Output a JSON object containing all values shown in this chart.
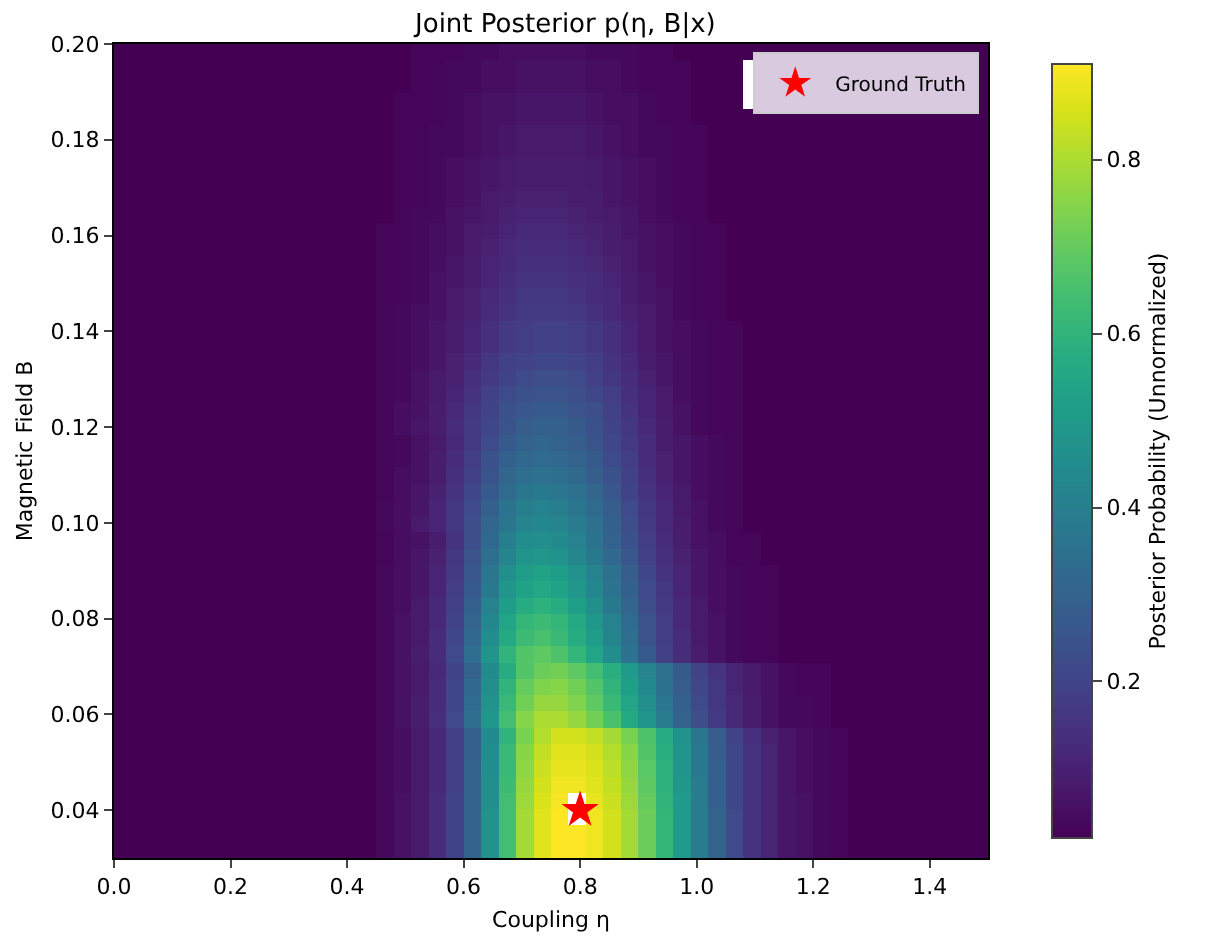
{
  "chart_data": {
    "type": "heatmap",
    "title": "Joint Posterior p(η, B|x)",
    "xlabel": "Coupling η",
    "ylabel": "Magnetic Field B",
    "clabel": "Posterior Probability (Unnormalized)",
    "x": [
      0.015,
      0.045,
      0.075,
      0.105,
      0.135,
      0.165,
      0.195,
      0.225,
      0.255,
      0.285,
      0.315,
      0.345,
      0.375,
      0.405,
      0.435,
      0.465,
      0.495,
      0.525,
      0.555,
      0.585,
      0.615,
      0.645,
      0.675,
      0.705,
      0.735,
      0.765,
      0.795,
      0.825,
      0.855,
      0.885,
      0.915,
      0.945,
      0.975,
      1.005,
      1.035,
      1.065,
      1.095,
      1.125,
      1.155,
      1.185,
      1.215,
      1.245,
      1.275,
      1.305,
      1.335,
      1.365,
      1.395,
      1.425,
      1.455,
      1.485
    ],
    "y": [
      0.1983,
      0.1949,
      0.1915,
      0.1881,
      0.1847,
      0.1813,
      0.1779,
      0.1745,
      0.1711,
      0.1677,
      0.1643,
      0.1609,
      0.1575,
      0.1541,
      0.1507,
      0.1473,
      0.1439,
      0.1405,
      0.1371,
      0.1337,
      0.1303,
      0.1269,
      0.1235,
      0.1201,
      0.1167,
      0.1133,
      0.1099,
      0.1065,
      0.1031,
      0.0997,
      0.0963,
      0.0929,
      0.0895,
      0.0861,
      0.0827,
      0.0793,
      0.0759,
      0.0725,
      0.0691,
      0.0657,
      0.0623,
      0.0589,
      0.0555,
      0.0521,
      0.0487,
      0.0453,
      0.0419,
      0.0385,
      0.0351,
      0.0317
    ],
    "cells": [
      [
        0.02,
        0.02,
        0.02,
        0.02,
        0.02,
        0.02,
        0.02,
        0.02,
        0.02,
        0.02,
        0.02,
        0.02,
        0.02,
        0.02,
        0.02,
        0.02,
        0.02,
        0.03,
        0.03,
        0.03,
        0.04,
        0.04,
        0.05,
        0.05,
        0.05,
        0.05,
        0.05,
        0.04,
        0.04,
        0.04,
        0.03,
        0.03,
        0.02,
        0.02,
        0.02,
        0.02,
        0.02,
        0.02,
        0.02,
        0.02,
        0.02,
        0.02,
        0.02,
        0.02,
        0.02,
        0.02,
        0.02,
        0.02,
        0.02,
        0.02
      ],
      [
        0.02,
        0.02,
        0.02,
        0.02,
        0.02,
        0.02,
        0.02,
        0.02,
        0.02,
        0.02,
        0.02,
        0.02,
        0.02,
        0.02,
        0.02,
        0.02,
        0.02,
        0.03,
        0.03,
        0.04,
        0.04,
        0.05,
        0.05,
        0.06,
        0.06,
        0.06,
        0.06,
        0.05,
        0.05,
        0.04,
        0.03,
        0.03,
        0.03,
        0.02,
        0.02,
        0.02,
        null,
        null,
        null,
        null,
        null,
        null,
        null,
        null,
        null,
        null,
        null,
        null,
        null,
        0.02
      ],
      [
        0.02,
        0.02,
        0.02,
        0.02,
        0.02,
        0.02,
        0.02,
        0.02,
        0.02,
        0.02,
        0.02,
        0.02,
        0.02,
        0.02,
        0.02,
        0.02,
        0.02,
        0.03,
        0.03,
        0.04,
        0.04,
        0.05,
        0.05,
        0.06,
        0.06,
        0.06,
        0.06,
        0.05,
        0.05,
        0.04,
        0.03,
        0.03,
        0.03,
        0.02,
        0.02,
        0.02,
        null,
        null,
        null,
        null,
        null,
        null,
        null,
        null,
        null,
        null,
        null,
        null,
        null,
        0.02
      ],
      [
        0.02,
        0.02,
        0.02,
        0.02,
        0.02,
        0.02,
        0.02,
        0.02,
        0.02,
        0.02,
        0.02,
        0.02,
        0.02,
        0.02,
        0.02,
        0.02,
        0.03,
        0.03,
        0.03,
        0.04,
        0.05,
        0.06,
        0.06,
        0.07,
        0.07,
        0.07,
        0.07,
        0.06,
        0.05,
        0.05,
        0.04,
        0.03,
        0.03,
        0.02,
        0.02,
        0.02,
        null,
        null,
        null,
        null,
        null,
        null,
        null,
        null,
        null,
        null,
        null,
        null,
        null,
        0.02
      ],
      [
        0.02,
        0.02,
        0.02,
        0.02,
        0.02,
        0.02,
        0.02,
        0.02,
        0.02,
        0.02,
        0.02,
        0.02,
        0.02,
        0.02,
        0.02,
        0.02,
        0.03,
        0.03,
        0.03,
        0.04,
        0.05,
        0.06,
        0.06,
        0.07,
        0.07,
        0.07,
        0.07,
        0.06,
        0.05,
        0.05,
        0.04,
        0.03,
        0.03,
        0.02,
        0.02,
        0.02,
        0.02,
        0.02,
        0.02,
        0.02,
        0.02,
        0.02,
        0.02,
        0.02,
        0.02,
        0.02,
        0.02,
        0.02,
        0.02,
        0.02
      ],
      [
        0.02,
        0.02,
        0.02,
        0.02,
        0.02,
        0.02,
        0.02,
        0.02,
        0.02,
        0.02,
        0.02,
        0.02,
        0.02,
        0.02,
        0.02,
        0.02,
        0.03,
        0.03,
        0.04,
        0.04,
        0.05,
        0.06,
        0.07,
        0.08,
        0.08,
        0.08,
        0.08,
        0.07,
        0.06,
        0.05,
        0.04,
        0.04,
        0.03,
        0.03,
        0.02,
        0.02,
        0.02,
        0.02,
        0.02,
        0.02,
        0.02,
        0.02,
        0.02,
        0.02,
        0.02,
        0.02,
        0.02,
        0.02,
        0.02,
        0.02
      ],
      [
        0.02,
        0.02,
        0.02,
        0.02,
        0.02,
        0.02,
        0.02,
        0.02,
        0.02,
        0.02,
        0.02,
        0.02,
        0.02,
        0.02,
        0.02,
        0.02,
        0.03,
        0.03,
        0.04,
        0.04,
        0.05,
        0.06,
        0.07,
        0.08,
        0.08,
        0.08,
        0.08,
        0.07,
        0.06,
        0.05,
        0.04,
        0.04,
        0.03,
        0.03,
        0.02,
        0.02,
        0.02,
        0.02,
        0.02,
        0.02,
        0.02,
        0.02,
        0.02,
        0.02,
        0.02,
        0.02,
        0.02,
        0.02,
        0.02,
        0.02
      ],
      [
        0.02,
        0.02,
        0.02,
        0.02,
        0.02,
        0.02,
        0.02,
        0.02,
        0.02,
        0.02,
        0.02,
        0.02,
        0.02,
        0.02,
        0.02,
        0.02,
        0.03,
        0.03,
        0.04,
        0.05,
        0.06,
        0.07,
        0.08,
        0.09,
        0.09,
        0.09,
        0.09,
        0.08,
        0.07,
        0.06,
        0.05,
        0.04,
        0.03,
        0.03,
        0.02,
        0.02,
        0.02,
        0.02,
        0.02,
        0.02,
        0.02,
        0.02,
        0.02,
        0.02,
        0.02,
        0.02,
        0.02,
        0.02,
        0.02,
        0.02
      ],
      [
        0.02,
        0.02,
        0.02,
        0.02,
        0.02,
        0.02,
        0.02,
        0.02,
        0.02,
        0.02,
        0.02,
        0.02,
        0.02,
        0.02,
        0.02,
        0.02,
        0.03,
        0.03,
        0.04,
        0.05,
        0.06,
        0.07,
        0.08,
        0.09,
        0.09,
        0.09,
        0.09,
        0.08,
        0.07,
        0.06,
        0.05,
        0.04,
        0.03,
        0.03,
        0.02,
        0.02,
        0.02,
        0.02,
        0.02,
        0.02,
        0.02,
        0.02,
        0.02,
        0.02,
        0.02,
        0.02,
        0.02,
        0.02,
        0.02,
        0.02
      ],
      [
        0.02,
        0.02,
        0.02,
        0.02,
        0.02,
        0.02,
        0.02,
        0.02,
        0.02,
        0.02,
        0.02,
        0.02,
        0.02,
        0.02,
        0.02,
        0.02,
        0.03,
        0.03,
        0.04,
        0.05,
        0.06,
        0.08,
        0.09,
        0.1,
        0.1,
        0.1,
        0.09,
        0.09,
        0.07,
        0.06,
        0.05,
        0.04,
        0.03,
        0.03,
        0.02,
        0.02,
        0.02,
        0.02,
        0.02,
        0.02,
        0.02,
        0.02,
        0.02,
        0.02,
        0.02,
        0.02,
        0.02,
        0.02,
        0.02,
        0.02
      ],
      [
        0.02,
        0.02,
        0.02,
        0.02,
        0.02,
        0.02,
        0.02,
        0.02,
        0.02,
        0.02,
        0.02,
        0.02,
        0.02,
        0.02,
        0.02,
        0.02,
        0.03,
        0.04,
        0.04,
        0.06,
        0.07,
        0.08,
        0.1,
        0.11,
        0.11,
        0.11,
        0.1,
        0.09,
        0.08,
        0.07,
        0.05,
        0.04,
        0.03,
        0.03,
        0.02,
        0.02,
        0.02,
        0.02,
        0.02,
        0.02,
        0.02,
        0.02,
        0.02,
        0.02,
        0.02,
        0.02,
        0.02,
        0.02,
        0.02,
        0.02
      ],
      [
        0.02,
        0.02,
        0.02,
        0.02,
        0.02,
        0.02,
        0.02,
        0.02,
        0.02,
        0.02,
        0.02,
        0.02,
        0.02,
        0.02,
        0.02,
        0.03,
        0.03,
        0.04,
        0.05,
        0.06,
        0.08,
        0.09,
        0.11,
        0.12,
        0.12,
        0.12,
        0.11,
        0.1,
        0.09,
        0.07,
        0.06,
        0.05,
        0.04,
        0.03,
        0.03,
        0.02,
        0.02,
        0.02,
        0.02,
        0.02,
        0.02,
        0.02,
        0.02,
        0.02,
        0.02,
        0.02,
        0.02,
        0.02,
        0.02,
        0.02
      ],
      [
        0.02,
        0.02,
        0.02,
        0.02,
        0.02,
        0.02,
        0.02,
        0.02,
        0.02,
        0.02,
        0.02,
        0.02,
        0.02,
        0.02,
        0.02,
        0.03,
        0.03,
        0.04,
        0.05,
        0.06,
        0.08,
        0.1,
        0.12,
        0.13,
        0.13,
        0.13,
        0.12,
        0.11,
        0.09,
        0.08,
        0.06,
        0.05,
        0.04,
        0.03,
        0.03,
        0.02,
        0.02,
        0.02,
        0.02,
        0.02,
        0.02,
        0.02,
        0.02,
        0.02,
        0.02,
        0.02,
        0.02,
        0.02,
        0.02,
        0.02
      ],
      [
        0.02,
        0.02,
        0.02,
        0.02,
        0.02,
        0.02,
        0.02,
        0.02,
        0.02,
        0.02,
        0.02,
        0.02,
        0.02,
        0.02,
        0.02,
        0.03,
        0.03,
        0.04,
        0.05,
        0.07,
        0.09,
        0.11,
        0.12,
        0.14,
        0.14,
        0.14,
        0.13,
        0.12,
        0.1,
        0.08,
        0.06,
        0.05,
        0.04,
        0.03,
        0.03,
        0.02,
        0.02,
        0.02,
        0.02,
        0.02,
        0.02,
        0.02,
        0.02,
        0.02,
        0.02,
        0.02,
        0.02,
        0.02,
        0.02,
        0.02
      ],
      [
        0.02,
        0.02,
        0.02,
        0.02,
        0.02,
        0.02,
        0.02,
        0.02,
        0.02,
        0.02,
        0.02,
        0.02,
        0.02,
        0.02,
        0.02,
        0.03,
        0.03,
        0.04,
        0.06,
        0.07,
        0.09,
        0.11,
        0.13,
        0.15,
        0.15,
        0.15,
        0.14,
        0.13,
        0.11,
        0.09,
        0.07,
        0.05,
        0.04,
        0.03,
        0.03,
        0.02,
        0.02,
        0.02,
        0.02,
        0.02,
        0.02,
        0.02,
        0.02,
        0.02,
        0.02,
        0.02,
        0.02,
        0.02,
        0.02,
        0.02
      ],
      [
        0.02,
        0.02,
        0.02,
        0.02,
        0.02,
        0.02,
        0.02,
        0.02,
        0.02,
        0.02,
        0.02,
        0.02,
        0.02,
        0.02,
        0.02,
        0.03,
        0.03,
        0.04,
        0.06,
        0.08,
        0.1,
        0.12,
        0.14,
        0.16,
        0.16,
        0.16,
        0.15,
        0.13,
        0.12,
        0.09,
        0.07,
        0.06,
        0.04,
        0.03,
        0.03,
        0.02,
        0.02,
        0.02,
        0.02,
        0.02,
        0.02,
        0.02,
        0.02,
        0.02,
        0.02,
        0.02,
        0.02,
        0.02,
        0.02,
        0.02
      ],
      [
        0.02,
        0.02,
        0.02,
        0.02,
        0.02,
        0.02,
        0.02,
        0.02,
        0.02,
        0.02,
        0.02,
        0.02,
        0.02,
        0.02,
        0.02,
        0.03,
        0.04,
        0.05,
        0.06,
        0.08,
        0.1,
        0.13,
        0.15,
        0.17,
        0.17,
        0.17,
        0.16,
        0.14,
        0.12,
        0.1,
        0.08,
        0.06,
        0.04,
        0.03,
        0.03,
        0.02,
        0.02,
        0.02,
        0.02,
        0.02,
        0.02,
        0.02,
        0.02,
        0.02,
        0.02,
        0.02,
        0.02,
        0.02,
        0.02,
        0.02
      ],
      [
        0.02,
        0.02,
        0.02,
        0.02,
        0.02,
        0.02,
        0.02,
        0.02,
        0.02,
        0.02,
        0.02,
        0.02,
        0.02,
        0.02,
        0.02,
        0.03,
        0.04,
        0.05,
        0.07,
        0.09,
        0.11,
        0.14,
        0.17,
        0.18,
        0.19,
        0.19,
        0.18,
        0.16,
        0.14,
        0.11,
        0.08,
        0.06,
        0.05,
        0.04,
        0.03,
        0.03,
        0.02,
        0.02,
        0.02,
        0.02,
        0.02,
        0.02,
        0.02,
        0.02,
        0.02,
        0.02,
        0.02,
        0.02,
        0.02,
        0.02
      ],
      [
        0.02,
        0.02,
        0.02,
        0.02,
        0.02,
        0.02,
        0.02,
        0.02,
        0.02,
        0.02,
        0.02,
        0.02,
        0.02,
        0.02,
        0.02,
        0.03,
        0.04,
        0.05,
        0.07,
        0.09,
        0.11,
        0.14,
        0.17,
        0.18,
        0.19,
        0.19,
        0.18,
        0.16,
        0.14,
        0.11,
        0.08,
        0.06,
        0.05,
        0.04,
        0.03,
        0.03,
        0.02,
        0.02,
        0.02,
        0.02,
        0.02,
        0.02,
        0.02,
        0.02,
        0.02,
        0.02,
        0.02,
        0.02,
        0.02,
        0.02
      ],
      [
        0.02,
        0.02,
        0.02,
        0.02,
        0.02,
        0.02,
        0.02,
        0.02,
        0.02,
        0.02,
        0.02,
        0.02,
        0.02,
        0.02,
        0.02,
        0.03,
        0.04,
        0.05,
        0.07,
        0.1,
        0.12,
        0.16,
        0.19,
        0.2,
        0.21,
        0.21,
        0.2,
        0.18,
        0.15,
        0.12,
        0.09,
        0.07,
        0.05,
        0.04,
        0.03,
        0.03,
        0.02,
        0.02,
        0.02,
        0.02,
        0.02,
        0.02,
        0.02,
        0.02,
        0.02,
        0.02,
        0.02,
        0.02,
        0.02,
        0.02
      ],
      [
        0.02,
        0.02,
        0.02,
        0.02,
        0.02,
        0.02,
        0.02,
        0.02,
        0.02,
        0.02,
        0.02,
        0.02,
        0.02,
        0.02,
        0.02,
        0.03,
        0.04,
        0.06,
        0.08,
        0.1,
        0.14,
        0.17,
        0.2,
        0.22,
        0.23,
        0.23,
        0.22,
        0.19,
        0.16,
        0.13,
        0.1,
        0.07,
        0.05,
        0.04,
        0.03,
        0.03,
        0.02,
        0.02,
        0.02,
        0.02,
        0.02,
        0.02,
        0.02,
        0.02,
        0.02,
        0.02,
        0.02,
        0.02,
        0.02,
        0.02
      ],
      [
        0.02,
        0.02,
        0.02,
        0.02,
        0.02,
        0.02,
        0.02,
        0.02,
        0.02,
        0.02,
        0.02,
        0.02,
        0.02,
        0.02,
        0.02,
        0.03,
        0.04,
        0.06,
        0.08,
        0.11,
        0.15,
        0.19,
        0.22,
        0.24,
        0.25,
        0.25,
        0.23,
        0.21,
        0.18,
        0.14,
        0.11,
        0.08,
        0.05,
        0.04,
        0.03,
        0.03,
        0.02,
        0.02,
        0.02,
        0.02,
        0.02,
        0.02,
        0.02,
        0.02,
        0.02,
        0.02,
        0.02,
        0.02,
        0.02,
        0.02
      ],
      [
        0.02,
        0.02,
        0.02,
        0.02,
        0.02,
        0.02,
        0.02,
        0.02,
        0.02,
        0.02,
        0.02,
        0.02,
        0.02,
        0.02,
        0.02,
        0.03,
        0.05,
        0.06,
        0.09,
        0.12,
        0.16,
        0.2,
        0.24,
        0.26,
        0.27,
        0.27,
        0.25,
        0.23,
        0.19,
        0.15,
        0.11,
        0.08,
        0.06,
        0.04,
        0.03,
        0.03,
        0.02,
        0.02,
        0.02,
        0.02,
        0.02,
        0.02,
        0.02,
        0.02,
        0.02,
        0.02,
        0.02,
        0.02,
        0.02,
        0.02
      ],
      [
        0.02,
        0.02,
        0.02,
        0.02,
        0.02,
        0.02,
        0.02,
        0.02,
        0.02,
        0.02,
        0.02,
        0.02,
        0.02,
        0.02,
        0.02,
        0.03,
        0.05,
        0.07,
        0.09,
        0.13,
        0.17,
        0.21,
        0.25,
        0.28,
        0.29,
        0.29,
        0.27,
        0.24,
        0.2,
        0.16,
        0.12,
        0.09,
        0.06,
        0.04,
        0.03,
        0.03,
        0.02,
        0.02,
        0.02,
        0.02,
        0.02,
        0.02,
        0.02,
        0.02,
        0.02,
        0.02,
        0.02,
        0.02,
        0.02,
        0.02
      ],
      [
        0.02,
        0.02,
        0.02,
        0.02,
        0.02,
        0.02,
        0.02,
        0.02,
        0.02,
        0.02,
        0.02,
        0.02,
        0.02,
        0.02,
        0.02,
        0.03,
        0.04,
        0.06,
        0.08,
        0.12,
        0.17,
        0.22,
        0.27,
        0.3,
        0.31,
        0.3,
        0.28,
        0.25,
        0.21,
        0.17,
        0.13,
        0.09,
        0.07,
        0.05,
        0.04,
        0.03,
        0.02,
        0.02,
        0.02,
        0.02,
        0.02,
        0.02,
        0.02,
        0.02,
        0.02,
        0.02,
        0.02,
        0.02,
        0.02,
        0.02
      ],
      [
        0.02,
        0.02,
        0.02,
        0.02,
        0.02,
        0.02,
        0.02,
        0.02,
        0.02,
        0.02,
        0.02,
        0.02,
        0.02,
        0.02,
        0.02,
        0.03,
        0.04,
        0.06,
        0.09,
        0.13,
        0.18,
        0.24,
        0.29,
        0.32,
        0.33,
        0.32,
        0.3,
        0.27,
        0.22,
        0.18,
        0.13,
        0.1,
        0.07,
        0.05,
        0.04,
        0.03,
        0.02,
        0.02,
        0.02,
        0.02,
        0.02,
        0.02,
        0.02,
        0.02,
        0.02,
        0.02,
        0.02,
        0.02,
        0.02,
        0.02
      ],
      [
        0.02,
        0.02,
        0.02,
        0.02,
        0.02,
        0.02,
        0.02,
        0.02,
        0.02,
        0.02,
        0.02,
        0.02,
        0.02,
        0.02,
        0.02,
        0.03,
        0.05,
        0.06,
        0.09,
        0.14,
        0.19,
        0.25,
        0.31,
        0.34,
        0.35,
        0.34,
        0.32,
        0.28,
        0.24,
        0.19,
        0.14,
        0.1,
        0.07,
        0.05,
        0.04,
        0.03,
        0.02,
        0.02,
        0.02,
        0.02,
        0.02,
        0.02,
        0.02,
        0.02,
        0.02,
        0.02,
        0.02,
        0.02,
        0.02,
        0.02
      ],
      [
        0.02,
        0.02,
        0.02,
        0.02,
        0.02,
        0.02,
        0.02,
        0.02,
        0.02,
        0.02,
        0.02,
        0.02,
        0.02,
        0.02,
        0.02,
        0.03,
        0.05,
        0.07,
        0.1,
        0.15,
        0.21,
        0.27,
        0.33,
        0.37,
        0.38,
        0.37,
        0.35,
        0.31,
        0.26,
        0.2,
        0.15,
        0.11,
        0.08,
        0.05,
        0.04,
        0.03,
        0.02,
        0.02,
        0.02,
        0.02,
        0.02,
        0.02,
        0.02,
        0.02,
        0.02,
        0.02,
        0.02,
        0.02,
        0.02,
        0.02
      ],
      [
        0.02,
        0.02,
        0.02,
        0.02,
        0.02,
        0.02,
        0.02,
        0.02,
        0.02,
        0.02,
        0.02,
        0.02,
        0.02,
        0.02,
        0.02,
        0.04,
        0.05,
        0.07,
        0.11,
        0.16,
        0.22,
        0.29,
        0.36,
        0.4,
        0.41,
        0.4,
        0.37,
        0.33,
        0.28,
        0.22,
        0.16,
        0.12,
        0.08,
        0.06,
        0.04,
        0.03,
        0.02,
        0.02,
        0.02,
        0.02,
        0.02,
        0.02,
        0.02,
        0.02,
        0.02,
        0.02,
        0.02,
        0.02,
        0.02,
        0.02
      ],
      [
        0.02,
        0.02,
        0.02,
        0.02,
        0.02,
        0.02,
        0.02,
        0.02,
        0.02,
        0.02,
        0.02,
        0.02,
        0.02,
        0.02,
        0.02,
        0.04,
        0.05,
        0.08,
        0.11,
        0.16,
        0.23,
        0.31,
        0.37,
        0.42,
        0.43,
        0.42,
        0.39,
        0.35,
        0.29,
        0.23,
        0.17,
        0.12,
        0.09,
        0.06,
        0.04,
        0.03,
        0.02,
        0.02,
        0.02,
        0.02,
        0.02,
        0.02,
        0.02,
        0.02,
        0.02,
        0.02,
        0.02,
        0.02,
        0.02,
        0.02
      ],
      [
        0.02,
        0.02,
        0.02,
        0.02,
        0.02,
        0.02,
        0.02,
        0.02,
        0.02,
        0.02,
        0.02,
        0.02,
        0.02,
        0.02,
        0.02,
        0.03,
        0.05,
        0.06,
        0.09,
        0.15,
        0.23,
        0.32,
        0.4,
        0.45,
        0.46,
        0.44,
        0.41,
        0.36,
        0.3,
        0.24,
        0.18,
        0.13,
        0.09,
        0.06,
        0.05,
        0.03,
        0.03,
        0.02,
        0.02,
        0.02,
        0.02,
        0.02,
        0.02,
        0.02,
        0.02,
        0.02,
        0.02,
        0.02,
        0.02,
        0.02
      ],
      [
        0.02,
        0.02,
        0.02,
        0.02,
        0.02,
        0.02,
        0.02,
        0.02,
        0.02,
        0.02,
        0.02,
        0.02,
        0.02,
        0.02,
        0.02,
        0.03,
        0.05,
        0.07,
        0.1,
        0.16,
        0.25,
        0.34,
        0.42,
        0.48,
        0.49,
        0.47,
        0.43,
        0.38,
        0.32,
        0.26,
        0.19,
        0.14,
        0.1,
        0.07,
        0.05,
        0.03,
        0.03,
        0.02,
        0.02,
        0.02,
        0.02,
        0.02,
        0.02,
        0.02,
        0.02,
        0.02,
        0.02,
        0.02,
        0.02,
        0.02
      ],
      [
        0.02,
        0.02,
        0.02,
        0.02,
        0.02,
        0.02,
        0.02,
        0.02,
        0.02,
        0.02,
        0.02,
        0.02,
        0.02,
        0.02,
        0.02,
        0.04,
        0.05,
        0.07,
        0.11,
        0.17,
        0.26,
        0.37,
        0.46,
        0.51,
        0.53,
        0.51,
        0.47,
        0.41,
        0.35,
        0.28,
        0.21,
        0.15,
        0.11,
        0.07,
        0.05,
        0.04,
        0.03,
        0.03,
        0.02,
        0.02,
        0.02,
        0.02,
        0.02,
        0.02,
        0.02,
        0.02,
        0.02,
        0.02,
        0.02,
        0.02
      ],
      [
        0.02,
        0.02,
        0.02,
        0.02,
        0.02,
        0.02,
        0.02,
        0.02,
        0.02,
        0.02,
        0.02,
        0.02,
        0.02,
        0.02,
        0.02,
        0.04,
        0.05,
        0.07,
        0.11,
        0.18,
        0.27,
        0.38,
        0.48,
        0.53,
        0.55,
        0.53,
        0.49,
        0.43,
        0.36,
        0.29,
        0.22,
        0.16,
        0.11,
        0.07,
        0.05,
        0.04,
        0.03,
        0.03,
        0.02,
        0.02,
        0.02,
        0.02,
        0.02,
        0.02,
        0.02,
        0.02,
        0.02,
        0.02,
        0.02,
        0.02
      ],
      [
        0.02,
        0.02,
        0.02,
        0.02,
        0.02,
        0.02,
        0.02,
        0.02,
        0.02,
        0.02,
        0.02,
        0.02,
        0.02,
        0.02,
        0.02,
        0.04,
        0.05,
        0.08,
        0.12,
        0.19,
        0.29,
        0.41,
        0.51,
        0.57,
        0.59,
        0.57,
        0.52,
        0.46,
        0.38,
        0.31,
        0.23,
        0.17,
        0.12,
        0.08,
        0.05,
        0.04,
        0.03,
        0.03,
        0.02,
        0.02,
        0.02,
        0.02,
        0.02,
        0.02,
        0.02,
        0.02,
        0.02,
        0.02,
        0.02,
        0.02
      ],
      [
        0.02,
        0.02,
        0.02,
        0.02,
        0.02,
        0.02,
        0.02,
        0.02,
        0.02,
        0.02,
        0.02,
        0.02,
        0.02,
        0.02,
        0.02,
        0.04,
        0.06,
        0.08,
        0.12,
        0.2,
        0.31,
        0.43,
        0.54,
        0.61,
        0.63,
        0.61,
        0.56,
        0.49,
        0.41,
        0.33,
        0.25,
        0.18,
        0.12,
        0.08,
        0.06,
        0.04,
        0.03,
        0.03,
        0.02,
        0.02,
        0.02,
        0.02,
        0.02,
        0.02,
        0.02,
        0.02,
        0.02,
        0.02,
        0.02,
        0.02
      ],
      [
        0.02,
        0.02,
        0.02,
        0.02,
        0.02,
        0.02,
        0.02,
        0.02,
        0.02,
        0.02,
        0.02,
        0.02,
        0.02,
        0.02,
        0.02,
        0.04,
        0.06,
        0.08,
        0.13,
        0.21,
        0.32,
        0.45,
        0.56,
        0.63,
        0.65,
        0.62,
        0.57,
        0.51,
        0.42,
        0.34,
        0.25,
        0.18,
        0.13,
        0.08,
        0.06,
        0.04,
        0.03,
        0.03,
        0.02,
        0.02,
        0.02,
        0.02,
        0.02,
        0.02,
        0.02,
        0.02,
        0.02,
        0.02,
        0.02,
        0.02
      ],
      [
        0.02,
        0.02,
        0.02,
        0.02,
        0.02,
        0.02,
        0.02,
        0.02,
        0.02,
        0.02,
        0.02,
        0.02,
        0.02,
        0.02,
        0.02,
        0.04,
        0.06,
        0.09,
        0.13,
        0.22,
        0.34,
        0.48,
        0.6,
        0.67,
        0.69,
        0.66,
        0.61,
        0.54,
        0.45,
        0.36,
        0.27,
        0.19,
        0.13,
        0.09,
        0.06,
        0.04,
        0.03,
        0.03,
        0.02,
        0.02,
        0.02,
        0.02,
        0.02,
        0.02,
        0.02,
        0.02,
        0.02,
        0.02,
        0.02,
        0.02
      ],
      [
        0.02,
        0.02,
        0.02,
        0.02,
        0.02,
        0.02,
        0.02,
        0.02,
        0.02,
        0.02,
        0.02,
        0.02,
        0.02,
        0.02,
        0.02,
        0.04,
        0.06,
        0.08,
        0.12,
        0.2,
        0.3,
        0.44,
        0.57,
        0.67,
        0.71,
        0.72,
        0.69,
        0.64,
        0.58,
        0.5,
        0.42,
        0.35,
        0.27,
        0.2,
        0.15,
        0.11,
        0.08,
        0.06,
        0.04,
        0.03,
        0.03,
        0.02,
        0.02,
        0.02,
        0.02,
        0.02,
        0.02,
        0.02,
        0.02,
        0.02
      ],
      [
        0.02,
        0.02,
        0.02,
        0.02,
        0.02,
        0.02,
        0.02,
        0.02,
        0.02,
        0.02,
        0.02,
        0.02,
        0.02,
        0.02,
        0.02,
        0.04,
        0.06,
        0.08,
        0.13,
        0.21,
        0.32,
        0.46,
        0.6,
        0.7,
        0.74,
        0.75,
        0.72,
        0.67,
        0.6,
        0.52,
        0.44,
        0.36,
        0.28,
        0.21,
        0.16,
        0.11,
        0.08,
        0.06,
        0.04,
        0.03,
        0.03,
        0.02,
        0.02,
        0.02,
        0.02,
        0.02,
        0.02,
        0.02,
        0.02,
        0.02
      ],
      [
        0.02,
        0.02,
        0.02,
        0.02,
        0.02,
        0.02,
        0.02,
        0.02,
        0.02,
        0.02,
        0.02,
        0.02,
        0.02,
        0.02,
        0.02,
        0.04,
        0.06,
        0.09,
        0.13,
        0.21,
        0.33,
        0.47,
        0.62,
        0.72,
        0.77,
        0.77,
        0.74,
        0.69,
        0.62,
        0.54,
        0.46,
        0.37,
        0.29,
        0.22,
        0.16,
        0.12,
        0.09,
        0.06,
        0.04,
        0.04,
        0.03,
        0.02,
        0.02,
        0.02,
        0.02,
        0.02,
        0.02,
        0.02,
        0.02,
        0.02
      ],
      [
        0.02,
        0.02,
        0.02,
        0.02,
        0.02,
        0.02,
        0.02,
        0.02,
        0.02,
        0.02,
        0.02,
        0.02,
        0.02,
        0.02,
        0.02,
        0.04,
        0.06,
        0.09,
        0.14,
        0.22,
        0.34,
        0.49,
        0.64,
        0.75,
        0.8,
        0.8,
        0.77,
        0.72,
        0.65,
        0.56,
        0.48,
        0.39,
        0.3,
        0.23,
        0.17,
        0.12,
        0.09,
        0.06,
        0.04,
        0.04,
        0.03,
        0.02,
        0.02,
        0.02,
        0.02,
        0.02,
        0.02,
        0.02,
        0.02,
        0.02
      ],
      [
        0.02,
        0.02,
        0.02,
        0.02,
        0.02,
        0.02,
        0.02,
        0.02,
        0.02,
        0.02,
        0.02,
        0.02,
        0.02,
        0.02,
        0.02,
        0.04,
        0.05,
        0.08,
        0.12,
        0.19,
        0.29,
        0.44,
        0.6,
        0.73,
        0.81,
        0.85,
        0.85,
        0.83,
        0.79,
        0.73,
        0.66,
        0.57,
        0.47,
        0.37,
        0.28,
        0.2,
        0.14,
        0.1,
        0.07,
        0.05,
        0.04,
        0.03,
        0.02,
        0.02,
        0.02,
        0.02,
        0.02,
        0.02,
        0.02,
        0.02
      ],
      [
        0.02,
        0.02,
        0.02,
        0.02,
        0.02,
        0.02,
        0.02,
        0.02,
        0.02,
        0.02,
        0.02,
        0.02,
        0.02,
        0.02,
        0.02,
        0.04,
        0.05,
        0.08,
        0.12,
        0.19,
        0.29,
        0.45,
        0.62,
        0.75,
        0.83,
        0.87,
        0.87,
        0.85,
        0.81,
        0.75,
        0.67,
        0.58,
        0.48,
        0.38,
        0.28,
        0.21,
        0.15,
        0.11,
        0.07,
        0.05,
        0.04,
        0.03,
        0.02,
        0.02,
        0.02,
        0.02,
        0.02,
        0.02,
        0.02,
        0.02
      ],
      [
        0.02,
        0.02,
        0.02,
        0.02,
        0.02,
        0.02,
        0.02,
        0.02,
        0.02,
        0.02,
        0.02,
        0.02,
        0.02,
        0.02,
        0.02,
        0.04,
        0.05,
        0.08,
        0.12,
        0.19,
        0.3,
        0.45,
        0.62,
        0.76,
        0.84,
        0.88,
        0.88,
        0.86,
        0.82,
        0.76,
        0.68,
        0.59,
        0.48,
        0.38,
        0.29,
        0.21,
        0.15,
        0.11,
        0.07,
        0.05,
        0.04,
        0.03,
        0.02,
        0.02,
        0.02,
        0.02,
        0.02,
        0.02,
        0.02,
        0.02
      ],
      [
        0.02,
        0.02,
        0.02,
        0.02,
        0.02,
        0.02,
        0.02,
        0.02,
        0.02,
        0.02,
        0.02,
        0.02,
        0.02,
        0.02,
        0.02,
        0.04,
        0.05,
        0.08,
        0.12,
        0.19,
        0.3,
        0.46,
        0.63,
        0.77,
        0.85,
        0.89,
        0.89,
        0.87,
        0.83,
        0.77,
        0.69,
        0.59,
        0.49,
        0.39,
        0.29,
        0.21,
        0.15,
        0.11,
        0.07,
        0.05,
        0.04,
        0.03,
        0.02,
        0.02,
        0.02,
        0.02,
        0.02,
        0.02,
        0.02,
        0.02
      ],
      [
        0.02,
        0.02,
        0.02,
        0.02,
        0.02,
        0.02,
        0.02,
        0.02,
        0.02,
        0.02,
        0.02,
        0.02,
        0.02,
        0.02,
        0.02,
        0.04,
        0.06,
        0.08,
        0.13,
        0.2,
        0.3,
        0.46,
        0.64,
        0.78,
        0.86,
        0.9,
        null,
        0.88,
        0.84,
        0.78,
        0.7,
        0.6,
        0.5,
        0.39,
        0.29,
        0.21,
        0.15,
        0.11,
        0.07,
        0.06,
        0.04,
        0.03,
        0.02,
        0.02,
        0.02,
        0.02,
        0.02,
        0.02,
        0.02,
        0.02
      ],
      [
        0.02,
        0.02,
        0.02,
        0.02,
        0.02,
        0.02,
        0.02,
        0.02,
        0.02,
        0.02,
        0.02,
        0.02,
        0.02,
        0.02,
        0.02,
        0.04,
        0.06,
        0.08,
        0.13,
        0.2,
        0.3,
        0.47,
        0.64,
        0.79,
        0.87,
        0.91,
        null,
        0.89,
        0.85,
        0.79,
        0.71,
        0.61,
        0.5,
        0.39,
        0.3,
        0.22,
        0.15,
        0.11,
        0.07,
        0.06,
        0.04,
        0.03,
        0.02,
        0.02,
        0.02,
        0.02,
        0.02,
        0.02,
        0.02,
        0.02
      ],
      [
        0.02,
        0.02,
        0.02,
        0.02,
        0.02,
        0.02,
        0.02,
        0.02,
        0.02,
        0.02,
        0.02,
        0.02,
        0.02,
        0.02,
        0.02,
        0.04,
        0.06,
        0.08,
        0.13,
        0.2,
        0.3,
        0.47,
        0.64,
        0.79,
        0.87,
        0.91,
        0.91,
        0.89,
        0.85,
        0.79,
        0.71,
        0.61,
        0.5,
        0.39,
        0.3,
        0.22,
        0.15,
        0.11,
        0.07,
        0.06,
        0.04,
        0.03,
        0.02,
        0.02,
        0.02,
        0.02,
        0.02,
        0.02,
        0.02,
        0.02
      ],
      [
        0.02,
        0.02,
        0.02,
        0.02,
        0.02,
        0.02,
        0.02,
        0.02,
        0.02,
        0.02,
        0.02,
        0.02,
        0.02,
        0.02,
        0.02,
        0.04,
        0.06,
        0.08,
        0.13,
        0.2,
        0.3,
        0.47,
        0.64,
        0.79,
        0.87,
        0.91,
        0.91,
        0.89,
        0.85,
        0.79,
        0.71,
        0.61,
        0.5,
        0.39,
        0.3,
        0.22,
        0.15,
        0.11,
        0.07,
        0.06,
        0.04,
        0.03,
        0.02,
        0.02,
        0.02,
        0.02,
        0.02,
        0.02,
        0.02,
        0.02
      ]
    ],
    "clim": [
      0.02,
      0.91
    ],
    "cticks": [
      0.2,
      0.4,
      0.6,
      0.8
    ],
    "xlim": [
      0,
      1.5
    ],
    "xticks": [
      {
        "value": 0,
        "label": "0.0"
      },
      {
        "value": 0.2,
        "label": "0.2"
      },
      {
        "value": 0.4,
        "label": "0.4"
      },
      {
        "value": 0.6,
        "label": "0.6"
      },
      {
        "value": 0.8,
        "label": "0.8"
      },
      {
        "value": 1,
        "label": "1.0"
      },
      {
        "value": 1.2,
        "label": "1.2"
      },
      {
        "value": 1.4,
        "label": "1.4"
      }
    ],
    "ylim": [
      0.03,
      0.2
    ],
    "yticks": [
      {
        "value": 0.04,
        "label": "0.04"
      },
      {
        "value": 0.06,
        "label": "0.06"
      },
      {
        "value": 0.08,
        "label": "0.08"
      },
      {
        "value": 0.1,
        "label": "0.10"
      },
      {
        "value": 0.12,
        "label": "0.12"
      },
      {
        "value": 0.14,
        "label": "0.14"
      },
      {
        "value": 0.16,
        "label": "0.16"
      },
      {
        "value": 0.18,
        "label": "0.18"
      },
      {
        "value": 0.2,
        "label": "0.20"
      }
    ],
    "series": [
      {
        "type": "scatter",
        "name": "Ground Truth",
        "color": "#ff0000",
        "marker": "star",
        "x": [
          0.8
        ],
        "values": [
          0.04
        ]
      }
    ],
    "legend": "top right",
    "grid": false
  }
}
